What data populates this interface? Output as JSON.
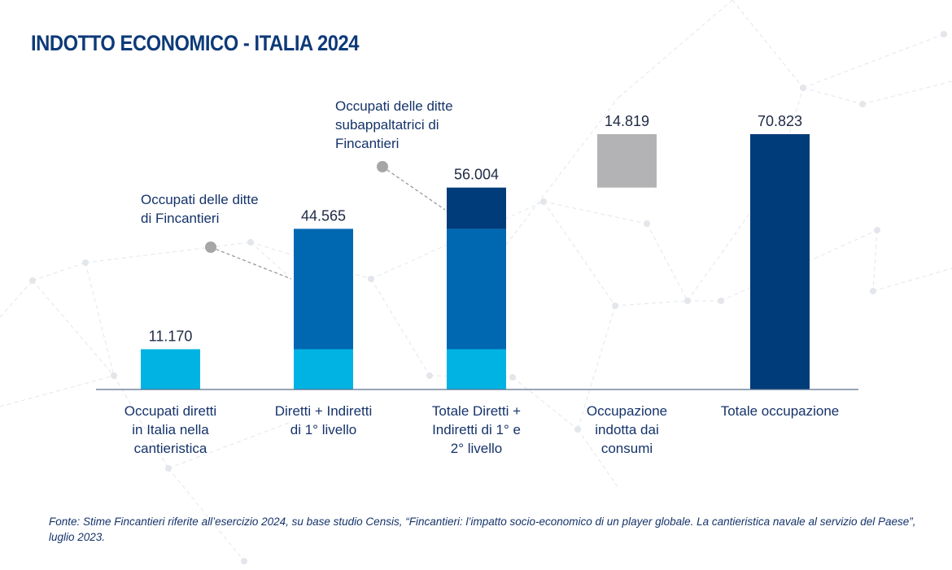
{
  "title": "INDOTTO ECONOMICO - ITALIA 2024",
  "source": "Fonte: Stime Fincantieri riferite all’esercizio 2024, su base studio Censis, “Fincantieri: l’impatto socio-economico di un player globale. La cantieristica navale al servizio del Paese”, luglio 2023.",
  "colors": {
    "light_blue": "#00b3e3",
    "mid_blue": "#0067b1",
    "dark_blue": "#003b7a",
    "grey": "#b3b3b5",
    "axis": "#5a6f8f"
  },
  "chart_data": {
    "type": "bar",
    "subtype": "stacked-waterfall",
    "categories": [
      [
        "Occupati diretti",
        "in Italia nella",
        "cantieristica"
      ],
      [
        "Diretti + Indiretti",
        "di 1° livello"
      ],
      [
        "Totale Diretti +",
        "Indiretti di 1° e",
        "2° livello"
      ],
      [
        "Occupazione",
        "indotta dai",
        "consumi"
      ],
      [
        "Totale occupazione"
      ]
    ],
    "totals_labels": [
      "11.170",
      "44.565",
      "56.004",
      "14.819",
      "70.823"
    ],
    "bars": [
      {
        "segments": [
          {
            "from": 0,
            "to": 11170,
            "color": "light_blue"
          }
        ]
      },
      {
        "segments": [
          {
            "from": 0,
            "to": 11170,
            "color": "light_blue"
          },
          {
            "from": 11170,
            "to": 44565,
            "color": "mid_blue"
          }
        ]
      },
      {
        "segments": [
          {
            "from": 0,
            "to": 11170,
            "color": "light_blue"
          },
          {
            "from": 11170,
            "to": 44565,
            "color": "mid_blue"
          },
          {
            "from": 44565,
            "to": 56004,
            "color": "dark_blue"
          }
        ]
      },
      {
        "segments": [
          {
            "from": 56004,
            "to": 70823,
            "color": "grey"
          }
        ]
      },
      {
        "segments": [
          {
            "from": 0,
            "to": 70823,
            "color": "dark_blue"
          }
        ]
      }
    ],
    "ylim": [
      0,
      70823
    ],
    "grid": false,
    "annotations": [
      {
        "lines": [
          "Occupati delle ditte",
          "di Fincantieri"
        ],
        "points_to_bar": 1
      },
      {
        "lines": [
          "Occupati delle ditte",
          "subappaltatrici di",
          "Fincantieri"
        ],
        "points_to_bar": 2
      }
    ]
  }
}
